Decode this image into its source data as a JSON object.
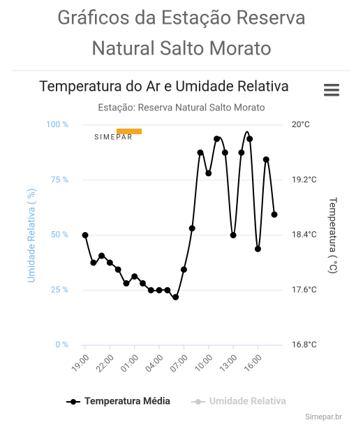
{
  "header": {
    "title_line1": "Gráficos da Estação Reserva",
    "title_line2": "Natural Salto Morato"
  },
  "chart_data": {
    "type": "line",
    "title": "Temperatura do Ar e Umidade Relativa",
    "subtitle": "Estação: Reserva Natural Salto Morato",
    "logo": "SIMEPAR",
    "ylabel": "Umidade Relativa ( %)",
    "y2label": "Temperatura ( °C)",
    "credit": "Simepar.br",
    "categories": [
      "19:00",
      null,
      null,
      "22:00",
      null,
      null,
      "01:00",
      null,
      null,
      "04:00",
      null,
      null,
      "07:00",
      null,
      null,
      "10:00",
      null,
      null,
      "13:00",
      null,
      null,
      "16:00",
      null,
      null
    ],
    "ylim": [
      0,
      100
    ],
    "yticks": [
      {
        "value": 0,
        "label": "0 %"
      },
      {
        "value": 25,
        "label": "25 %"
      },
      {
        "value": 50,
        "label": "50 %"
      },
      {
        "value": 75,
        "label": "75 %"
      },
      {
        "value": 100,
        "label": "100 %"
      }
    ],
    "y2lim": [
      16.8,
      20
    ],
    "y2ticks": [
      {
        "value": 16.8,
        "label": "16.8°C"
      },
      {
        "value": 17.6,
        "label": "17.6°C"
      },
      {
        "value": 18.4,
        "label": "18.4°C"
      },
      {
        "value": 19.2,
        "label": "19.2°C"
      },
      {
        "value": 20,
        "label": "20°C"
      }
    ],
    "grid": true,
    "series": [
      {
        "name": "Temperatura Média",
        "color": "#000000",
        "axis": "y2",
        "values": [
          18.4,
          18.0,
          18.1,
          18.0,
          17.9,
          17.7,
          17.8,
          17.7,
          17.6,
          17.6,
          17.6,
          17.5,
          17.9,
          18.5,
          19.6,
          19.3,
          19.8,
          19.6,
          18.4,
          19.6,
          19.8,
          18.2,
          19.5,
          18.7
        ]
      },
      {
        "name": "Umidade Relativa",
        "color": "#cccccc",
        "visible": false
      }
    ]
  }
}
